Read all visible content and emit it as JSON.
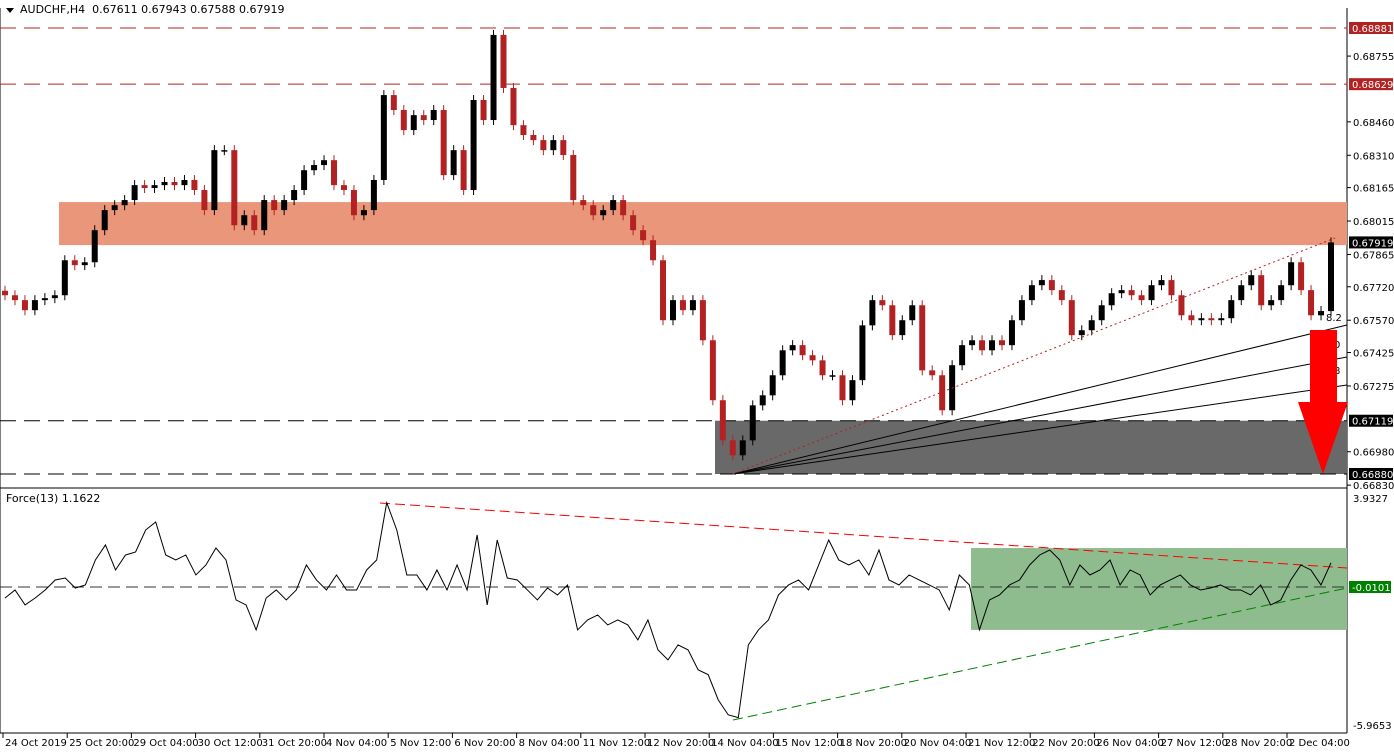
{
  "header": {
    "symbol": "AUDCHF,H4",
    "ohlc": "0.67611 0.67943 0.67588 0.67919"
  },
  "force_header": "Force(13) 1.1622",
  "colors": {
    "bull": "#000000",
    "bear": "#b22222",
    "resistance_zone": "#e9967a",
    "support_zone": "#696969",
    "force_zone": "#8fbc8f",
    "arrow": "#ff0000",
    "red_level": "#b22222",
    "force_level": "#008000"
  },
  "price_axis": {
    "ticks": [
      "0.68755",
      "0.68460",
      "0.68310",
      "0.68165",
      "0.68015",
      "0.67865",
      "0.67720",
      "0.67570",
      "0.67425",
      "0.67275",
      "0.66980",
      "0.66830"
    ],
    "levels": [
      {
        "price": "0.68881",
        "style": "red"
      },
      {
        "price": "0.68629",
        "style": "red"
      },
      {
        "price": "0.67919",
        "style": "current"
      },
      {
        "price": "0.67119",
        "style": "black"
      },
      {
        "price": "0.66880",
        "style": "black"
      }
    ]
  },
  "force_axis": {
    "max": "3.9327",
    "min": "-5.9653",
    "level": "-0.0101"
  },
  "fan_labels": [
    "8.2",
    "0",
    "8"
  ],
  "time_axis": [
    "24 Oct 2019",
    "25 Oct 20:00",
    "29 Oct 04:00",
    "30 Oct 12:00",
    "31 Oct 20:00",
    "4 Nov 04:00",
    "5 Nov 12:00",
    "6 Nov 20:00",
    "8 Nov 04:00",
    "11 Nov 12:00",
    "12 Nov 20:00",
    "14 Nov 04:00",
    "15 Nov 12:00",
    "18 Nov 20:00",
    "20 Nov 04:00",
    "21 Nov 12:00",
    "22 Nov 20:00",
    "26 Nov 04:00",
    "27 Nov 12:00",
    "28 Nov 20:00",
    "2 Dec 04:00"
  ],
  "chart_data": {
    "type": "candlestick",
    "symbol": "AUDCHF",
    "timeframe": "H4",
    "ylim": [
      0.6683,
      0.68895
    ],
    "resistance_zone": [
      0.67907,
      0.681
    ],
    "support_zone": [
      0.6688,
      0.67119
    ],
    "closes": [
      0.67682,
      0.6766,
      0.67615,
      0.6766,
      0.67669,
      0.67682,
      0.67839,
      0.67817,
      0.6783,
      0.67974,
      0.68064,
      0.68086,
      0.68109,
      0.68176,
      0.68163,
      0.68176,
      0.6819,
      0.68176,
      0.68199,
      0.68154,
      0.68064,
      0.68333,
      0.68333,
      0.67996,
      0.68041,
      0.67974,
      0.68109,
      0.68064,
      0.68109,
      0.68154,
      0.68243,
      0.68266,
      0.68288,
      0.68176,
      0.68154,
      0.68041,
      0.68064,
      0.68199,
      0.6858,
      0.68513,
      0.68423,
      0.6849,
      0.68468,
      0.68513,
      0.68221,
      0.68333,
      0.68154,
      0.68558,
      0.68468,
      0.6885,
      0.68612,
      0.68445,
      0.68401,
      0.68378,
      0.68333,
      0.68378,
      0.68311,
      0.68109,
      0.68086,
      0.68041,
      0.68064,
      0.68109,
      0.68041,
      0.67974,
      0.67929,
      0.67839,
      0.6757,
      0.6766,
      0.67615,
      0.6766,
      0.6748,
      0.67211,
      0.67031,
      0.66964,
      0.67031,
      0.67188,
      0.67233,
      0.67323,
      0.67435,
      0.67458,
      0.67413,
      0.6739,
      0.67323,
      0.67323,
      0.67211,
      0.67301,
      0.67547,
      0.6766,
      0.67637,
      0.67503,
      0.6757,
      0.67637,
      0.67345,
      0.67323,
      0.67166,
      0.67368,
      0.67458,
      0.6748,
      0.67435,
      0.6748,
      0.67458,
      0.6757,
      0.6766,
      0.67727,
      0.6775,
      0.67705,
      0.6766,
      0.67503,
      0.67525,
      0.6757,
      0.67637,
      0.67691,
      0.67705,
      0.67682,
      0.6766,
      0.67727,
      0.6775,
      0.67682,
      0.67592,
      0.6757,
      0.67579,
      0.6757,
      0.67579,
      0.6766,
      0.67727,
      0.67772,
      0.67637,
      0.6766,
      0.67727,
      0.6783,
      0.67705,
      0.67592,
      0.67611,
      0.67919
    ],
    "force": {
      "name": "Force(13)",
      "ylim": [
        -5.9653,
        3.9327
      ],
      "values": [
        -0.46,
        -0.09,
        -0.78,
        -0.46,
        -0.09,
        0.37,
        0.46,
        0,
        0.14,
        1.29,
        1.98,
        0.83,
        1.52,
        1.66,
        2.67,
        3.04,
        1.52,
        1.29,
        1.52,
        0.6,
        1.06,
        1.84,
        1.29,
        -0.55,
        -0.78,
        -1.93,
        -0.46,
        -0.09,
        -0.55,
        -0.09,
        1.06,
        0.37,
        -0.09,
        0.6,
        -0.09,
        -0.09,
        0.83,
        1.29,
        3.93,
        2.67,
        0.6,
        0.6,
        -0.09,
        0.83,
        -0.09,
        1.06,
        -0.09,
        2.44,
        -0.78,
        2.21,
        0.46,
        0.37,
        -0.09,
        -0.55,
        0,
        -0.32,
        0.14,
        -1.93,
        -1.47,
        -1.24,
        -1.7,
        -1.47,
        -1.7,
        -2.39,
        -1.47,
        -2.85,
        -3.31,
        -2.62,
        -2.85,
        -3.77,
        -3.99,
        -5.15,
        -5.84,
        -5.97,
        -2.62,
        -1.93,
        -1.47,
        -0.32,
        0.14,
        0.37,
        -0.09,
        1.06,
        2.21,
        1.29,
        1.06,
        1.29,
        0.6,
        1.75,
        0.37,
        0.14,
        0.6,
        0.37,
        0.14,
        -0.09,
        -1.01,
        0.6,
        0.14,
        -1.93,
        -0.55,
        -0.32,
        0.14,
        0.37,
        1.06,
        1.52,
        1.75,
        1.29,
        0.14,
        1.06,
        0.6,
        0.83,
        1.29,
        0.14,
        0.83,
        0.6,
        -0.32,
        0.14,
        0.37,
        0.6,
        0.14,
        -0.09,
        0,
        0.14,
        -0.09,
        -0.09,
        -0.32,
        0.14,
        -0.78,
        -0.55,
        0.37,
        1.06,
        0.83,
        0.14,
        1.16
      ],
      "zone": [
        -1.93,
        1.84
      ]
    }
  }
}
